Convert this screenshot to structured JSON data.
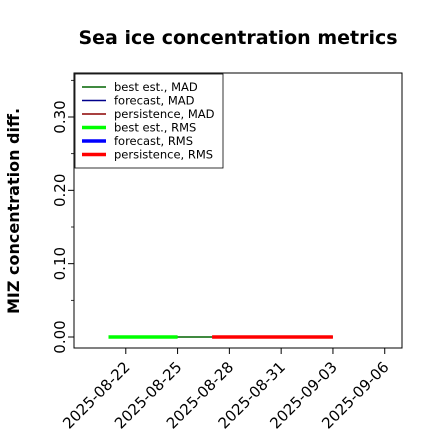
{
  "chart_data": {
    "type": "line",
    "title": "Sea ice concentration metrics",
    "xlabel": "",
    "ylabel": "MIZ concentration diff.",
    "ylim": [
      -0.015,
      0.36
    ],
    "xlim": [
      "2025-08-19",
      "2025-09-07"
    ],
    "y_ticks": [
      "0.00",
      "0.10",
      "0.20",
      "0.30"
    ],
    "y_tick_values": [
      0.0,
      0.1,
      0.2,
      0.3
    ],
    "y_minor_tick_values": [
      0.05,
      0.15,
      0.25,
      0.35
    ],
    "x_ticks": [
      "2025-08-22",
      "2025-08-25",
      "2025-08-28",
      "2025-08-31",
      "2025-09-03",
      "2025-09-06"
    ],
    "highlight_tick": "2025-08-28",
    "highlight_color": "#228b22",
    "grid": false,
    "legend_position": "upper-left",
    "series": [
      {
        "name": "best est., MAD",
        "color": "#006400",
        "width": 1.5,
        "x": [
          "2025-08-21",
          "2025-09-03"
        ],
        "y": [
          0.0,
          0.0
        ]
      },
      {
        "name": "forecast,  MAD",
        "color": "#00008b",
        "width": 1.5,
        "x": [],
        "y": []
      },
      {
        "name": "persistence, MAD",
        "color": "#8b0000",
        "width": 1.5,
        "x": [],
        "y": []
      },
      {
        "name": "best est., RMS",
        "color": "#00ff00",
        "width": 3.5,
        "x": [
          "2025-08-21",
          "2025-08-25"
        ],
        "y": [
          0.0,
          0.0
        ]
      },
      {
        "name": "forecast,  RMS",
        "color": "#0000ff",
        "width": 3.5,
        "x": [],
        "y": []
      },
      {
        "name": "persistence, RMS",
        "color": "#ff0000",
        "width": 3.5,
        "x": [
          "2025-08-27",
          "2025-09-03"
        ],
        "y": [
          0.0,
          0.0
        ]
      }
    ]
  }
}
